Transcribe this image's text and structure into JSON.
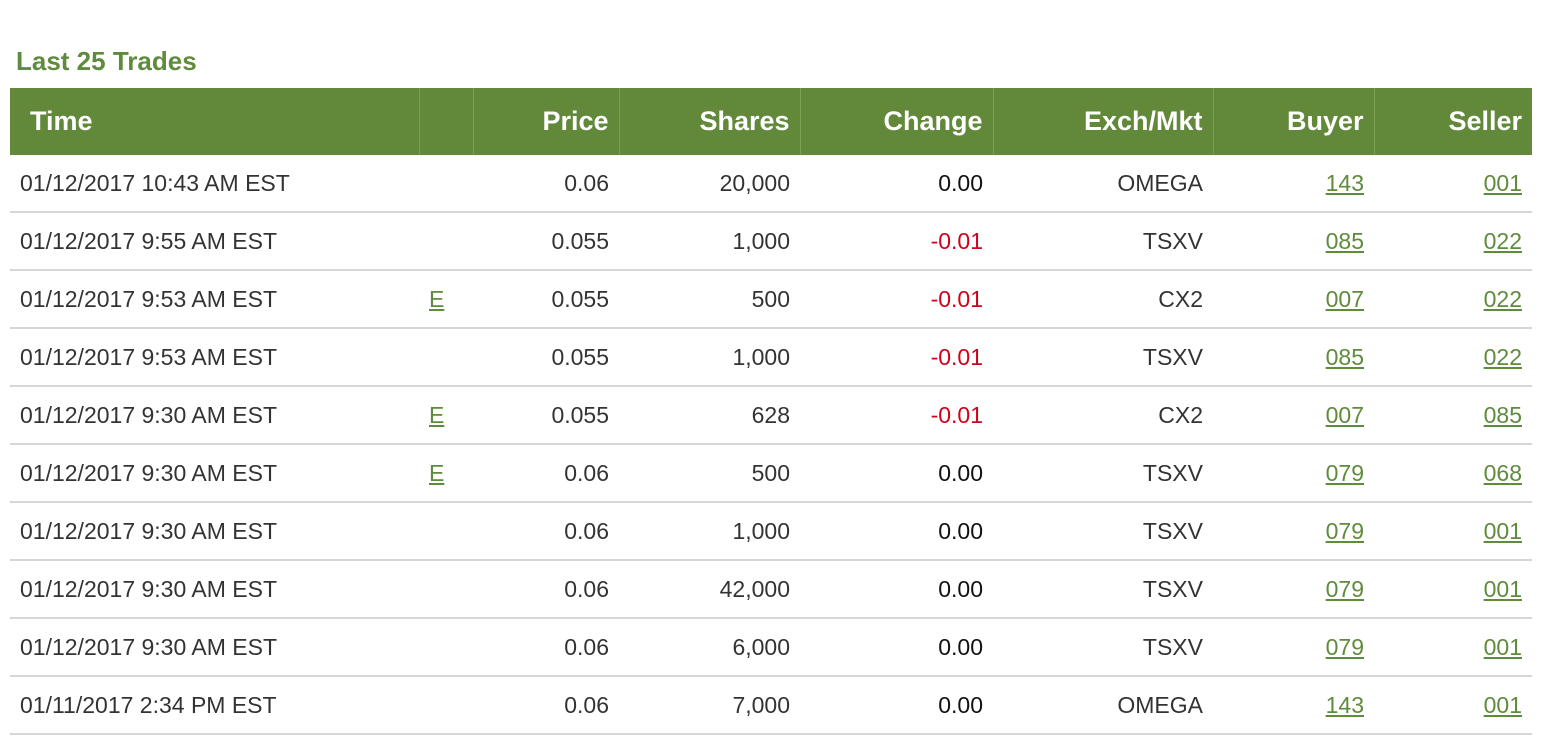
{
  "section": {
    "title": "Last 25 Trades"
  },
  "table": {
    "headers": [
      "Time",
      "",
      "Price",
      "Shares",
      "Change",
      "Exch/Mkt",
      "Buyer",
      "Seller"
    ],
    "rows": [
      {
        "time": "01/12/2017 10:43 AM EST",
        "flag": "",
        "price": "0.06",
        "shares": "20,000",
        "change": "0.00",
        "negative": false,
        "exch": "OMEGA",
        "buyer": "143",
        "seller": "001"
      },
      {
        "time": "01/12/2017 9:55 AM EST",
        "flag": "",
        "price": "0.055",
        "shares": "1,000",
        "change": "-0.01",
        "negative": true,
        "exch": "TSXV",
        "buyer": "085",
        "seller": "022"
      },
      {
        "time": "01/12/2017 9:53 AM EST",
        "flag": "E",
        "price": "0.055",
        "shares": "500",
        "change": "-0.01",
        "negative": true,
        "exch": "CX2",
        "buyer": "007",
        "seller": "022"
      },
      {
        "time": "01/12/2017 9:53 AM EST",
        "flag": "",
        "price": "0.055",
        "shares": "1,000",
        "change": "-0.01",
        "negative": true,
        "exch": "TSXV",
        "buyer": "085",
        "seller": "022"
      },
      {
        "time": "01/12/2017 9:30 AM EST",
        "flag": "E",
        "price": "0.055",
        "shares": "628",
        "change": "-0.01",
        "negative": true,
        "exch": "CX2",
        "buyer": "007",
        "seller": "085"
      },
      {
        "time": "01/12/2017 9:30 AM EST",
        "flag": "E",
        "price": "0.06",
        "shares": "500",
        "change": "0.00",
        "negative": false,
        "exch": "TSXV",
        "buyer": "079",
        "seller": "068"
      },
      {
        "time": "01/12/2017 9:30 AM EST",
        "flag": "",
        "price": "0.06",
        "shares": "1,000",
        "change": "0.00",
        "negative": false,
        "exch": "TSXV",
        "buyer": "079",
        "seller": "001"
      },
      {
        "time": "01/12/2017 9:30 AM EST",
        "flag": "",
        "price": "0.06",
        "shares": "42,000",
        "change": "0.00",
        "negative": false,
        "exch": "TSXV",
        "buyer": "079",
        "seller": "001"
      },
      {
        "time": "01/12/2017 9:30 AM EST",
        "flag": "",
        "price": "0.06",
        "shares": "6,000",
        "change": "0.00",
        "negative": false,
        "exch": "TSXV",
        "buyer": "079",
        "seller": "001"
      },
      {
        "time": "01/11/2017 2:34 PM EST",
        "flag": "",
        "price": "0.06",
        "shares": "7,000",
        "change": "0.00",
        "negative": false,
        "exch": "OMEGA",
        "buyer": "143",
        "seller": "001"
      }
    ]
  },
  "colors": {
    "header_bg": "#62883a",
    "title": "#5f8b3c",
    "link": "#5f8b3c",
    "negative": "#d0021b"
  }
}
